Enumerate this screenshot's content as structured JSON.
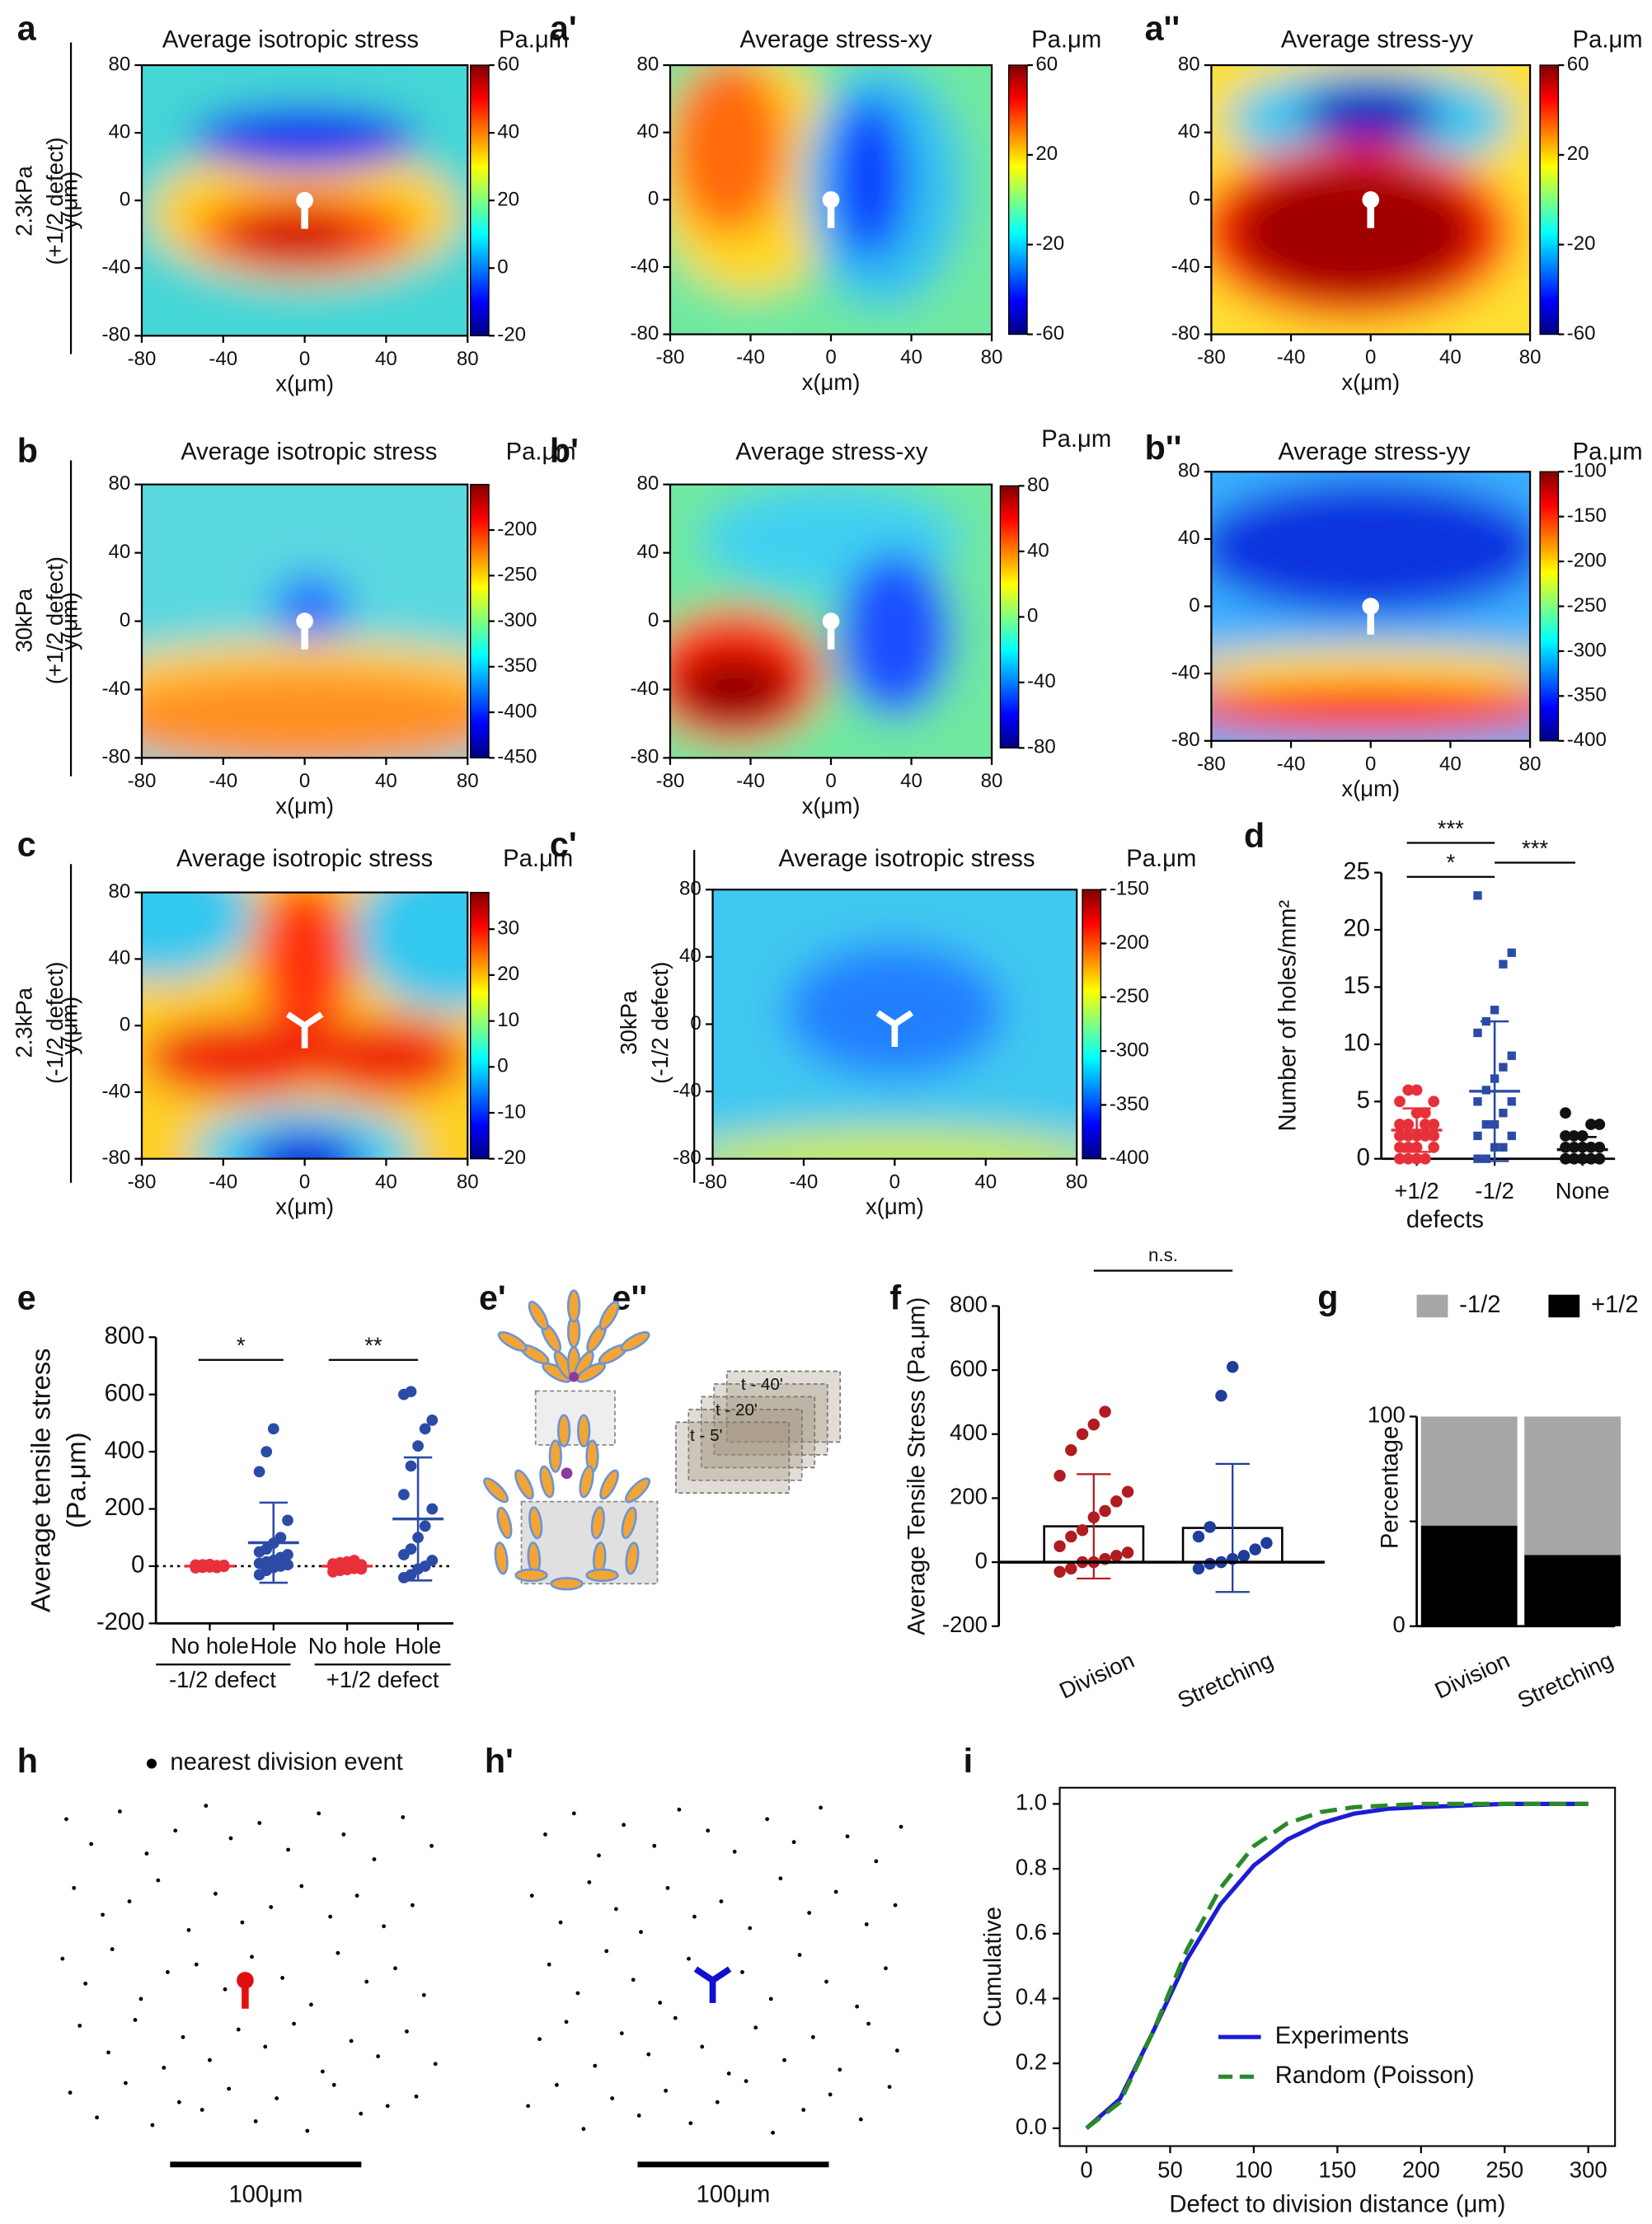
{
  "chart_data": [
    {
      "type": "heatmap",
      "panel": "a",
      "title": "Average isotropic stress",
      "unit": "Pa.μm",
      "row_label": [
        "2.3kPa",
        "(+1/2 defect)"
      ],
      "xlabel": "x(μm)",
      "ylabel": "y(μm)",
      "xlim": [
        -80,
        80
      ],
      "ylim": [
        -80,
        80
      ],
      "xticks": [
        -80,
        -40,
        0,
        40,
        80
      ],
      "yticks": [
        -80,
        -40,
        0,
        40,
        80
      ],
      "clim": [
        -20,
        60
      ],
      "cticks": [
        -20,
        0,
        20,
        40,
        60
      ]
    },
    {
      "type": "heatmap",
      "panel": "a'",
      "title": "Average stress-xy",
      "unit": "Pa.μm",
      "xlabel": "x(μm)",
      "xlim": [
        -80,
        80
      ],
      "ylim": [
        -80,
        80
      ],
      "xticks": [
        -80,
        -40,
        0,
        40,
        80
      ],
      "yticks": [
        -80,
        -40,
        0,
        40,
        80
      ],
      "clim": [
        -60,
        60
      ],
      "cticks": [
        -60,
        -20,
        20,
        60
      ]
    },
    {
      "type": "heatmap",
      "panel": "a''",
      "title": "Average stress-yy",
      "unit": "Pa.μm",
      "xlabel": "x(μm)",
      "xlim": [
        -80,
        80
      ],
      "ylim": [
        -80,
        80
      ],
      "xticks": [
        -80,
        -40,
        0,
        40,
        80
      ],
      "yticks": [
        -80,
        -40,
        0,
        40,
        80
      ],
      "clim": [
        -60,
        60
      ],
      "cticks": [
        -60,
        -20,
        20,
        60
      ]
    },
    {
      "type": "heatmap",
      "panel": "b",
      "title": "Average isotropic stress",
      "unit": "Pa.μm",
      "row_label": [
        "30kPa",
        "(+1/2 defect)"
      ],
      "xlabel": "x(μm)",
      "ylabel": "y(μm)",
      "xlim": [
        -80,
        80
      ],
      "ylim": [
        -80,
        80
      ],
      "xticks": [
        -80,
        -40,
        0,
        40,
        80
      ],
      "yticks": [
        -80,
        -40,
        0,
        40,
        80
      ],
      "clim": [
        -450,
        -150
      ],
      "cticks": [
        -450,
        -400,
        -350,
        -300,
        -250,
        -200
      ]
    },
    {
      "type": "heatmap",
      "panel": "b'",
      "title": "Average stress-xy",
      "unit": "Pa.μm",
      "xlabel": "x(μm)",
      "xlim": [
        -80,
        80
      ],
      "ylim": [
        -80,
        80
      ],
      "xticks": [
        -80,
        -40,
        0,
        40,
        80
      ],
      "yticks": [
        -80,
        -40,
        0,
        40,
        80
      ],
      "clim": [
        -80,
        80
      ],
      "cticks": [
        -80,
        -40,
        0,
        40,
        80
      ]
    },
    {
      "type": "heatmap",
      "panel": "b''",
      "title": "Average stress-yy",
      "unit": "Pa.μm",
      "xlabel": "x(μm)",
      "xlim": [
        -80,
        80
      ],
      "ylim": [
        -80,
        80
      ],
      "xticks": [
        -80,
        -40,
        0,
        40,
        80
      ],
      "yticks": [
        -80,
        -40,
        0,
        40,
        80
      ],
      "clim": [
        -400,
        -100
      ],
      "cticks": [
        -400,
        -350,
        -300,
        -250,
        -200,
        -150,
        -100
      ]
    },
    {
      "type": "heatmap",
      "panel": "c",
      "title": "Average isotropic stress",
      "unit": "Pa.μm",
      "row_label": [
        "2.3kPa",
        "(-1/2 defect)"
      ],
      "xlabel": "x(μm)",
      "ylabel": "y(μm)",
      "xlim": [
        -80,
        80
      ],
      "ylim": [
        -80,
        80
      ],
      "xticks": [
        -80,
        -40,
        0,
        40,
        80
      ],
      "yticks": [
        -80,
        -40,
        0,
        40,
        80
      ],
      "clim": [
        -20,
        38
      ],
      "cticks": [
        -20,
        -10,
        0,
        10,
        20,
        30
      ]
    },
    {
      "type": "heatmap",
      "panel": "c'",
      "title": "Average isotropic stress",
      "unit": "Pa.μm",
      "row_label": [
        "30kPa",
        "(-1/2 defect)"
      ],
      "xlabel": "x(μm)",
      "xlim": [
        -80,
        80
      ],
      "ylim": [
        -80,
        80
      ],
      "xticks": [
        -80,
        -40,
        0,
        40,
        80
      ],
      "yticks": [
        -80,
        -40,
        0,
        40,
        80
      ],
      "clim": [
        -400,
        -150
      ],
      "cticks": [
        -400,
        -350,
        -300,
        -250,
        -200,
        -150
      ]
    },
    {
      "type": "dot",
      "panel": "d",
      "ylabel": "Number of holes/mm²",
      "xlabel": "defects",
      "categories": [
        "+1/2",
        "-1/2",
        "None"
      ],
      "colors": [
        "#e8303a",
        "#2b4ba6",
        "#111111"
      ],
      "points": [
        [
          0,
          0,
          0,
          0,
          1,
          1,
          1,
          1,
          2,
          2,
          2,
          2,
          2,
          3,
          3,
          3,
          3,
          4,
          4,
          5,
          5,
          6,
          6
        ],
        [
          0,
          0,
          1,
          1,
          2,
          2,
          3,
          3,
          4,
          5,
          5,
          6,
          7,
          8,
          9,
          11,
          12,
          13,
          17,
          18,
          23
        ],
        [
          0,
          0,
          0,
          0,
          0,
          0,
          0,
          0,
          0,
          0,
          1,
          1,
          1,
          1,
          1,
          2,
          2,
          2,
          3,
          3,
          4
        ]
      ],
      "means": [
        2.5,
        5.9,
        0.8
      ],
      "sd": [
        1.9,
        6.1,
        1.1
      ],
      "ylim": [
        0,
        25
      ],
      "yticks": [
        0,
        5,
        10,
        15,
        20,
        25
      ],
      "annotations": [
        "***",
        "*",
        "***"
      ]
    },
    {
      "type": "dot",
      "panel": "e",
      "ylabel": [
        "Average tensile stress",
        "(Pa.μm)"
      ],
      "categories": [
        "No hole",
        "Hole",
        "No hole",
        "Hole"
      ],
      "groups": [
        "-1/2 defect",
        "+1/2 defect"
      ],
      "colors": [
        "#e8303a",
        "#2b4ba6",
        "#e8303a",
        "#2b4ba6"
      ],
      "points": [
        [
          -6,
          -4,
          -3,
          -2,
          -1,
          0,
          0,
          1,
          2,
          3,
          4,
          5,
          6,
          -5
        ],
        [
          -30,
          -15,
          -5,
          0,
          5,
          10,
          15,
          20,
          30,
          40,
          50,
          60,
          80,
          100,
          160,
          330,
          400,
          480
        ],
        [
          -20,
          -15,
          -12,
          -8,
          -5,
          -2,
          0,
          0,
          3,
          5,
          8,
          12,
          15,
          20,
          -10
        ],
        [
          -40,
          -30,
          -10,
          0,
          20,
          40,
          60,
          100,
          140,
          200,
          250,
          350,
          420,
          480,
          510,
          600,
          610
        ]
      ],
      "means": [
        0,
        82,
        0,
        165
      ],
      "sd": [
        4,
        140,
        10,
        215
      ],
      "ylim": [
        -200,
        800
      ],
      "yticks": [
        -200,
        0,
        200,
        400,
        600,
        800
      ],
      "annotations": [
        "*",
        "**"
      ]
    },
    {
      "type": "bar",
      "panel": "f",
      "ylabel": "Average Tensile Stress (Pa.μm)",
      "categories": [
        "Division",
        "Stretching"
      ],
      "values": [
        112,
        107
      ],
      "errors": [
        163,
        200
      ],
      "colors": [
        "#b01c20",
        "#1f3d99"
      ],
      "points": [
        [
          -30,
          -20,
          0,
          0,
          10,
          20,
          30,
          50,
          80,
          100,
          140,
          160,
          190,
          220,
          270,
          350,
          400,
          430,
          470
        ],
        [
          -20,
          -5,
          0,
          10,
          20,
          40,
          60,
          80,
          110,
          520,
          610
        ]
      ],
      "ylim": [
        -200,
        800
      ],
      "yticks": [
        -200,
        0,
        200,
        400,
        600,
        800
      ],
      "annotations": [
        "n.s."
      ]
    },
    {
      "type": "stacked_bar",
      "panel": "g",
      "ylabel": "Percentage",
      "categories": [
        "Division",
        "Stretching"
      ],
      "series": [
        {
          "name": "+1/2",
          "color": "#000000",
          "values": [
            48,
            34
          ]
        },
        {
          "name": "-1/2",
          "color": "#a6a6a6",
          "values": [
            52,
            66
          ]
        }
      ],
      "ylim": [
        0,
        100
      ],
      "yticks": [
        0,
        100
      ],
      "minor_yticks": [
        50
      ]
    },
    {
      "type": "scatter",
      "panel": "h",
      "legend": "nearest division event",
      "scale_bar": "100μm",
      "scale_bar_length": 100,
      "x": [
        5,
        18,
        33,
        47,
        62,
        78,
        91,
        106,
        121,
        137,
        150,
        166,
        181,
        196,
        9,
        24,
        38,
        53,
        69,
        83,
        97,
        112,
        128,
        143,
        157,
        171,
        186,
        3,
        15,
        29,
        44,
        58,
        73,
        88,
        102,
        118,
        133,
        147,
        162,
        177,
        192,
        12,
        27,
        41,
        56,
        66,
        80,
        95,
        109,
        124,
        139,
        154,
        168,
        183,
        198,
        7,
        21,
        36,
        50,
        64,
        76,
        90,
        104,
        115,
        131,
        145,
        159,
        173,
        188
      ],
      "y": [
        12,
        25,
        8,
        30,
        18,
        5,
        22,
        14,
        28,
        9,
        20,
        33,
        11,
        26,
        48,
        62,
        55,
        44,
        70,
        51,
        66,
        58,
        47,
        63,
        52,
        68,
        57,
        85,
        98,
        80,
        106,
        92,
        88,
        101,
        84,
        95,
        109,
        82,
        97,
        90,
        104,
        120,
        134,
        117,
        142,
        126,
        138,
        122,
        131,
        119,
        144,
        128,
        136,
        123,
        140,
        155,
        168,
        150,
        172,
        160,
        164,
        153,
        170,
        158,
        175,
        151,
        166,
        162,
        157
      ]
    },
    {
      "type": "scatter",
      "panel": "h'",
      "scale_bar": "100μm",
      "scale_bar_length": 100,
      "x": [
        11,
        26,
        39,
        52,
        68,
        81,
        96,
        110,
        127,
        141,
        155,
        169,
        184,
        197,
        4,
        19,
        34,
        48,
        61,
        75,
        89,
        103,
        118,
        134,
        149,
        163,
        179,
        194,
        13,
        28,
        43,
        57,
        71,
        86,
        99,
        114,
        129,
        144,
        158,
        174,
        189,
        8,
        22,
        37,
        51,
        65,
        79,
        93,
        107,
        121,
        136,
        151,
        165,
        180,
        195,
        2,
        17,
        31,
        46,
        60,
        74,
        87,
        101,
        116,
        130,
        146,
        160,
        176,
        191
      ],
      "y": [
        20,
        9,
        31,
        15,
        26,
        7,
        18,
        29,
        12,
        24,
        6,
        21,
        34,
        16,
        52,
        66,
        45,
        59,
        71,
        48,
        63,
        55,
        69,
        43,
        61,
        50,
        67,
        57,
        88,
        103,
        81,
        96,
        108,
        85,
        99,
        92,
        106,
        83,
        97,
        110,
        90,
        127,
        118,
        141,
        124,
        135,
        116,
        131,
        145,
        121,
        138,
        126,
        143,
        119,
        133,
        162,
        151,
        174,
        158,
        167,
        154,
        171,
        160,
        149,
        176,
        164,
        156,
        169,
        152
      ]
    },
    {
      "type": "line",
      "panel": "i",
      "xlabel": "Defect to division distance (μm)",
      "ylabel": "Cumulative",
      "x": [
        0,
        20,
        40,
        60,
        80,
        100,
        120,
        140,
        160,
        180,
        200,
        250,
        300
      ],
      "series": [
        {
          "name": "Experiments",
          "color": "#1c1cd6",
          "dash": false,
          "values": [
            0,
            0.09,
            0.3,
            0.52,
            0.69,
            0.81,
            0.89,
            0.94,
            0.97,
            0.985,
            0.99,
            1,
            1
          ]
        },
        {
          "name": "Random (Poisson)",
          "color": "#2a8a2a",
          "dash": true,
          "values": [
            0,
            0.08,
            0.3,
            0.55,
            0.74,
            0.87,
            0.94,
            0.975,
            0.99,
            0.995,
            1,
            1,
            1
          ]
        }
      ],
      "xlim": [
        -16,
        316
      ],
      "ylim": [
        -0.055,
        1.05
      ],
      "xticks": [
        0,
        50,
        100,
        150,
        200,
        250,
        300
      ],
      "yticks": [
        {
          "value": 0,
          "label": "0.0"
        },
        {
          "value": 0.2,
          "label": "0.2"
        },
        {
          "value": 0.4,
          "label": "0.4"
        },
        {
          "value": 0.6,
          "label": "0.6"
        },
        {
          "value": 0.8,
          "label": "0.8"
        },
        {
          "value": 1,
          "label": "1.0"
        }
      ],
      "legend": "lower right"
    }
  ],
  "diagram": {
    "panels": [
      "e'",
      "e''"
    ],
    "time_labels": [
      "t - 40'",
      "t - 20'",
      "t - 5'"
    ]
  }
}
